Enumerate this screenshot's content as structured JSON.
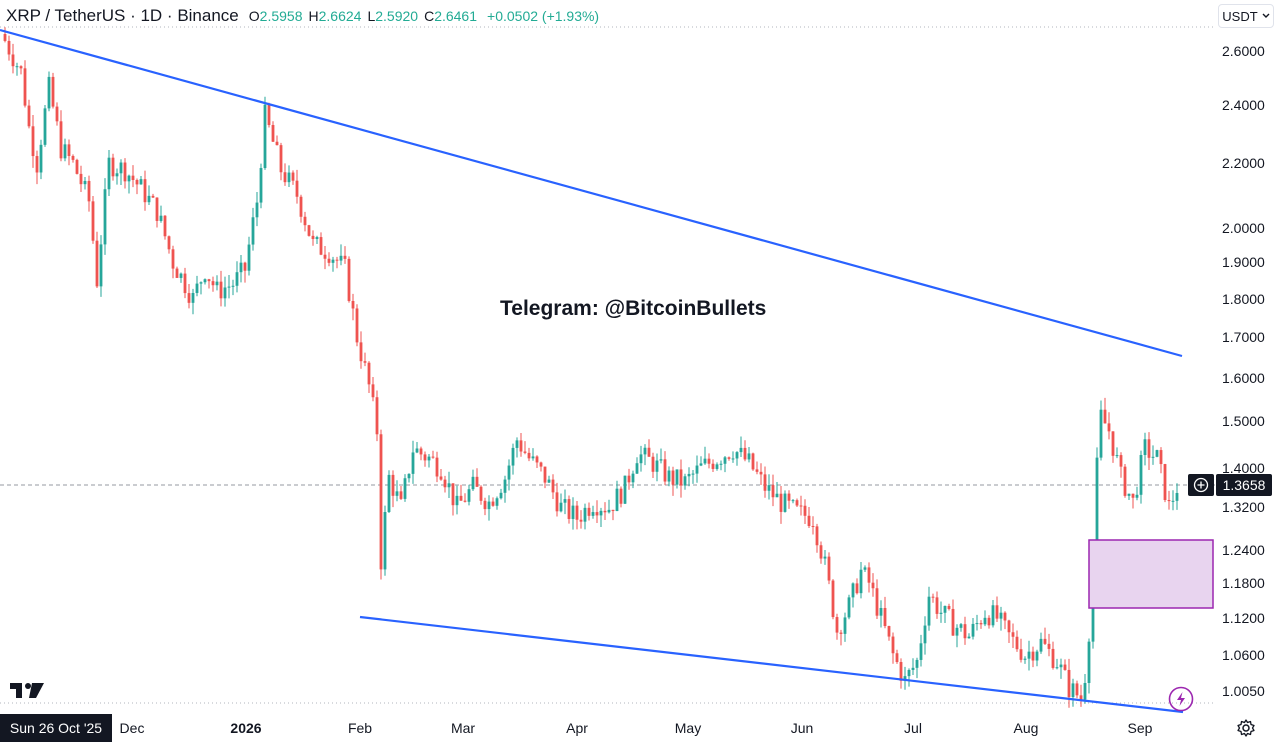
{
  "header": {
    "symbol": "XRP / TetherUS · 1D · Binance",
    "o_label": "O",
    "o_value": "2.5958",
    "h_label": "H",
    "h_value": "2.6624",
    "l_label": "L",
    "l_value": "2.5920",
    "c_label": "C",
    "c_value": "2.6461",
    "change": "+0.0502 (+1.93%)"
  },
  "currency_button": {
    "label": "USDT",
    "icon": "chevron-down-icon"
  },
  "watermark": "Telegram: @BitcoinBullets",
  "crosshair_date": "Sun 26 Oct '25",
  "current_price": "1.3658",
  "colors": {
    "up": "#26a69a",
    "down": "#ef5350",
    "trendline": "#2962ff",
    "zone_fill": "#e8d4ef",
    "zone_border": "#9c27b0",
    "price_line": "#9598a1",
    "text": "#131722"
  },
  "chart_data": {
    "type": "candlestick",
    "scale": "log",
    "y_ticks": [
      "2.6000",
      "2.4000",
      "2.2000",
      "2.0000",
      "1.9000",
      "1.8000",
      "1.7000",
      "1.6000",
      "1.5000",
      "1.4000",
      "1.3200",
      "1.2400",
      "1.1800",
      "1.1200",
      "1.0600",
      "1.0050"
    ],
    "x_ticks": [
      {
        "label": "Dec",
        "bold": false
      },
      {
        "label": "2026",
        "bold": true
      },
      {
        "label": "Feb",
        "bold": false
      },
      {
        "label": "Mar",
        "bold": false
      },
      {
        "label": "Apr",
        "bold": false
      },
      {
        "label": "May",
        "bold": false
      },
      {
        "label": "Jun",
        "bold": false
      },
      {
        "label": "Jul",
        "bold": false
      },
      {
        "label": "Aug",
        "bold": false
      },
      {
        "label": "Sep",
        "bold": false
      }
    ],
    "ylim": [
      0.97,
      2.7
    ],
    "last_price": 1.3658,
    "anchors": [
      [
        0,
        2.64
      ],
      [
        4,
        2.52
      ],
      [
        6,
        2.32
      ],
      [
        8,
        2.2
      ],
      [
        11,
        2.46
      ],
      [
        14,
        2.25
      ],
      [
        17,
        2.2
      ],
      [
        21,
        2.08
      ],
      [
        23,
        1.85
      ],
      [
        26,
        2.2
      ],
      [
        30,
        2.18
      ],
      [
        34,
        2.12
      ],
      [
        38,
        2.05
      ],
      [
        42,
        1.9
      ],
      [
        47,
        1.8
      ],
      [
        50,
        1.88
      ],
      [
        53,
        1.82
      ],
      [
        57,
        1.84
      ],
      [
        60,
        1.88
      ],
      [
        63,
        2.08
      ],
      [
        65,
        2.36
      ],
      [
        69,
        2.18
      ],
      [
        73,
        2.1
      ],
      [
        77,
        1.95
      ],
      [
        81,
        1.93
      ],
      [
        85,
        1.88
      ],
      [
        88,
        1.7
      ],
      [
        91,
        1.58
      ],
      [
        93,
        1.48
      ],
      [
        94,
        1.22
      ],
      [
        96,
        1.38
      ],
      [
        99,
        1.32
      ],
      [
        102,
        1.44
      ],
      [
        106,
        1.42
      ],
      [
        109,
        1.4
      ],
      [
        113,
        1.32
      ],
      [
        117,
        1.36
      ],
      [
        121,
        1.33
      ],
      [
        125,
        1.38
      ],
      [
        128,
        1.46
      ],
      [
        131,
        1.42
      ],
      [
        135,
        1.38
      ],
      [
        139,
        1.32
      ],
      [
        143,
        1.3
      ],
      [
        147,
        1.33
      ],
      [
        151,
        1.32
      ],
      [
        155,
        1.36
      ],
      [
        158,
        1.43
      ],
      [
        162,
        1.41
      ],
      [
        166,
        1.38
      ],
      [
        170,
        1.37
      ],
      [
        174,
        1.4
      ],
      [
        178,
        1.42
      ],
      [
        182,
        1.44
      ],
      [
        186,
        1.41
      ],
      [
        190,
        1.36
      ],
      [
        194,
        1.33
      ],
      [
        198,
        1.31
      ],
      [
        202,
        1.3
      ],
      [
        205,
        1.21
      ],
      [
        208,
        1.1
      ],
      [
        211,
        1.14
      ],
      [
        214,
        1.2
      ],
      [
        216,
        1.18
      ],
      [
        219,
        1.12
      ],
      [
        222,
        1.06
      ],
      [
        225,
        1.02
      ],
      [
        228,
        1.05
      ],
      [
        231,
        1.16
      ],
      [
        234,
        1.13
      ],
      [
        237,
        1.11
      ],
      [
        241,
        1.09
      ],
      [
        245,
        1.13
      ],
      [
        248,
        1.12
      ],
      [
        251,
        1.09
      ],
      [
        255,
        1.06
      ],
      [
        259,
        1.08
      ],
      [
        263,
        1.05
      ],
      [
        266,
        1.01
      ],
      [
        269,
        0.995
      ],
      [
        270,
        1.03
      ],
      [
        271,
        1.1
      ],
      [
        272,
        1.22
      ],
      [
        273,
        1.4
      ],
      [
        274,
        1.51
      ],
      [
        276,
        1.48
      ],
      [
        279,
        1.38
      ],
      [
        282,
        1.33
      ],
      [
        285,
        1.44
      ],
      [
        288,
        1.42
      ],
      [
        291,
        1.32
      ],
      [
        293,
        1.36
      ]
    ]
  }
}
